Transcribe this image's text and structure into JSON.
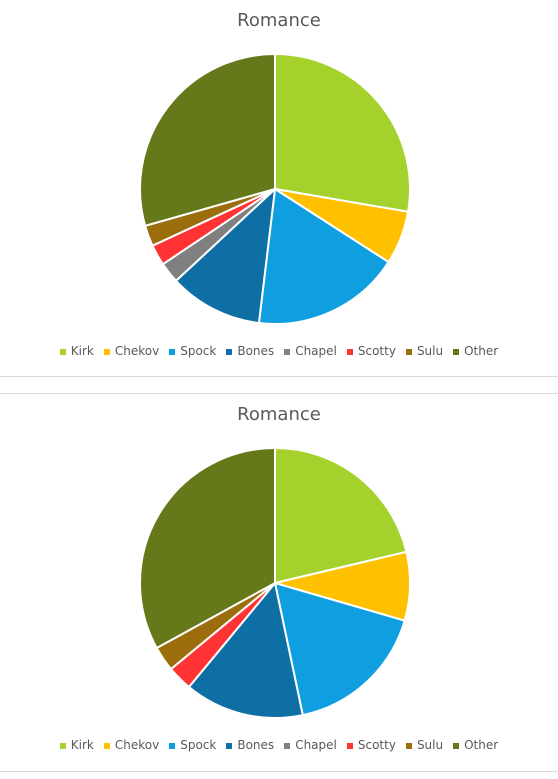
{
  "chart_data": [
    {
      "type": "pie",
      "title": "Romance",
      "legend_position": "bottom",
      "categories": [
        "Kirk",
        "Chekov",
        "Spock",
        "Bones",
        "Chapel",
        "Scotty",
        "Sulu",
        "Other"
      ],
      "values": [
        27.7,
        6.4,
        17.8,
        11.2,
        2.5,
        2.5,
        2.5,
        29.4
      ],
      "colors": [
        "#a4d12b",
        "#ffc000",
        "#0f9ee0",
        "#0e6fa5",
        "#808080",
        "#ff3333",
        "#9c6d0c",
        "#65791b"
      ]
    },
    {
      "type": "pie",
      "title": "Romance",
      "legend_position": "bottom",
      "categories": [
        "Kirk",
        "Chekov",
        "Spock",
        "Bones",
        "Chapel",
        "Scotty",
        "Sulu",
        "Other"
      ],
      "values": [
        21.3,
        8.2,
        17.2,
        14.3,
        0.0,
        3.0,
        3.0,
        33.0
      ],
      "colors": [
        "#a4d12b",
        "#ffc000",
        "#0f9ee0",
        "#0e6fa5",
        "#808080",
        "#ff3333",
        "#9c6d0c",
        "#65791b"
      ]
    }
  ]
}
